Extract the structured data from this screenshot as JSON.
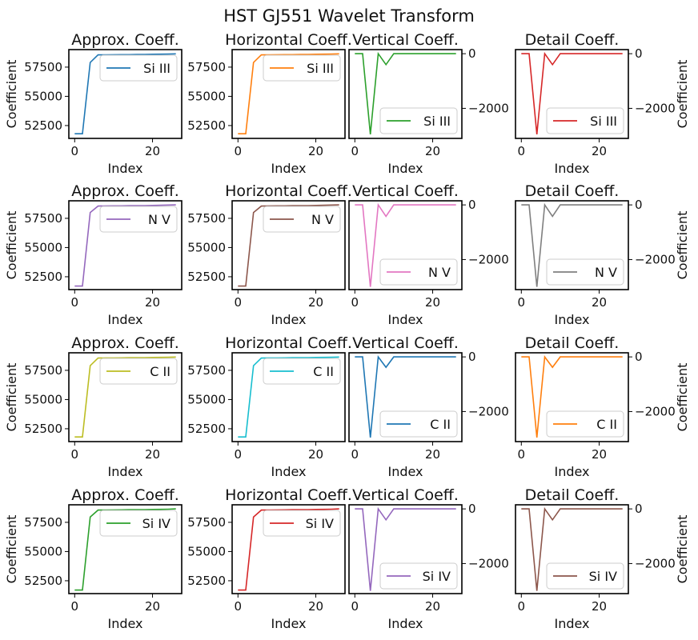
{
  "figure_title": "HST GJ551 Wavelet Transform",
  "chart_data": {
    "type": "line",
    "title": "HST GJ551 Wavelet Transform",
    "xlabel": "Index",
    "ylabel": "Coefficient",
    "grid": false,
    "columns": [
      {
        "subtitle": "Approx. Coeff.",
        "kind": "approx",
        "ylim": [
          51400,
          59000
        ],
        "yticks": [
          52500,
          55000,
          57500
        ],
        "yaxis": "left",
        "legend": "top-right"
      },
      {
        "subtitle": "Horizontal Coeff.",
        "kind": "approx",
        "ylim": [
          51400,
          59000
        ],
        "yticks": [
          52500,
          55000,
          57500
        ],
        "yaxis": "left",
        "legend": "top-right"
      },
      {
        "subtitle": "Vertical Coeff.",
        "kind": "detail",
        "ylim": [
          -3100,
          150
        ],
        "yticks": [
          0,
          -2000
        ],
        "yaxis": "right",
        "legend": "bottom-right"
      },
      {
        "subtitle": "Detail Coeff.",
        "kind": "detail",
        "ylim": [
          -3100,
          150
        ],
        "yticks": [
          0,
          -2000
        ],
        "yaxis": "right",
        "legend": "bottom-right"
      }
    ],
    "xlim": [
      -1.5,
      27.5
    ],
    "xticks": [
      0,
      20
    ],
    "x": [
      0,
      2,
      4,
      6,
      8,
      10,
      12,
      14,
      16,
      18,
      20,
      22,
      24,
      26
    ],
    "rows": [
      {
        "ion": "Si III",
        "colors": [
          "#1f77b4",
          "#ff7f0e",
          "#2ca02c",
          "#d62728"
        ],
        "approx": [
          51800,
          51800,
          57900,
          58550,
          58550,
          58560,
          58570,
          58570,
          58580,
          58590,
          58600,
          58610,
          58620,
          58640
        ],
        "detail": [
          0,
          0,
          -2950,
          0,
          -400,
          0,
          0,
          0,
          0,
          0,
          0,
          0,
          0,
          0
        ]
      },
      {
        "ion": "N V",
        "colors": [
          "#9467bd",
          "#8c564b",
          "#e377c2",
          "#7f7f7f"
        ],
        "approx": [
          51700,
          51700,
          58000,
          58550,
          58560,
          58570,
          58570,
          58580,
          58590,
          58590,
          58600,
          58620,
          58640,
          58650
        ],
        "detail": [
          0,
          0,
          -3000,
          0,
          -420,
          0,
          0,
          0,
          0,
          0,
          0,
          0,
          0,
          0
        ]
      },
      {
        "ion": "C II",
        "colors": [
          "#bcbd22",
          "#17becf",
          "#1f77b4",
          "#ff7f0e"
        ],
        "approx": [
          51800,
          51800,
          57900,
          58550,
          58560,
          58560,
          58570,
          58580,
          58580,
          58590,
          58600,
          58610,
          58620,
          58640
        ],
        "detail": [
          0,
          0,
          -2950,
          0,
          -380,
          0,
          0,
          0,
          0,
          0,
          0,
          0,
          0,
          0
        ]
      },
      {
        "ion": "Si IV",
        "colors": [
          "#2ca02c",
          "#d62728",
          "#9467bd",
          "#8c564b"
        ],
        "approx": [
          51700,
          51700,
          57950,
          58550,
          58550,
          58560,
          58570,
          58580,
          58580,
          58590,
          58600,
          58610,
          58620,
          58650
        ],
        "detail": [
          0,
          0,
          -3000,
          0,
          -400,
          0,
          0,
          0,
          0,
          0,
          0,
          0,
          0,
          0
        ]
      }
    ]
  }
}
